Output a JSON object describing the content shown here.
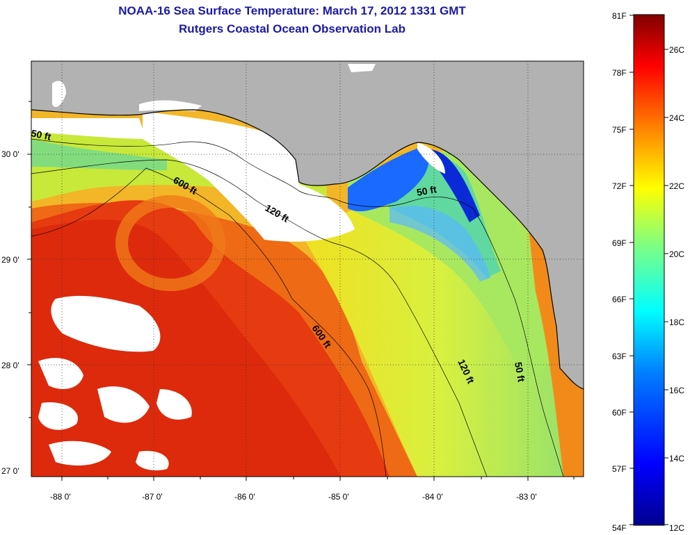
{
  "title": {
    "line1": "NOAA-16 Sea Surface Temperature:  March 17, 2012 1331 GMT",
    "line2": "Rutgers Coastal Ocean Observation Lab"
  },
  "map": {
    "lon_ticks": [
      "-88 0'",
      "-87 0'",
      "-86 0'",
      "-85 0'",
      "-84 0'",
      "-83 0'"
    ],
    "lat_ticks": [
      "27 0'",
      "28 0'",
      "29 0'",
      "30 0'"
    ],
    "contours": [
      "50 ft",
      "600 ft",
      "120 ft",
      "50 ft",
      "600 ft",
      "120 ft",
      "50 ft"
    ],
    "colors": {
      "land": "#b2b2b2",
      "cloud": "#ffffff"
    }
  },
  "colorbar": {
    "fahrenheit": [
      "81F",
      "78F",
      "75F",
      "72F",
      "69F",
      "66F",
      "63F",
      "60F",
      "57F",
      "54F"
    ],
    "celsius": [
      "26C",
      "24C",
      "22C",
      "20C",
      "18C",
      "16C",
      "14C",
      "12C"
    ],
    "stops": [
      "#00008f",
      "#0000ff",
      "#0080ff",
      "#00ffff",
      "#80ff80",
      "#ffff00",
      "#ff8000",
      "#ff0000",
      "#800000"
    ]
  }
}
